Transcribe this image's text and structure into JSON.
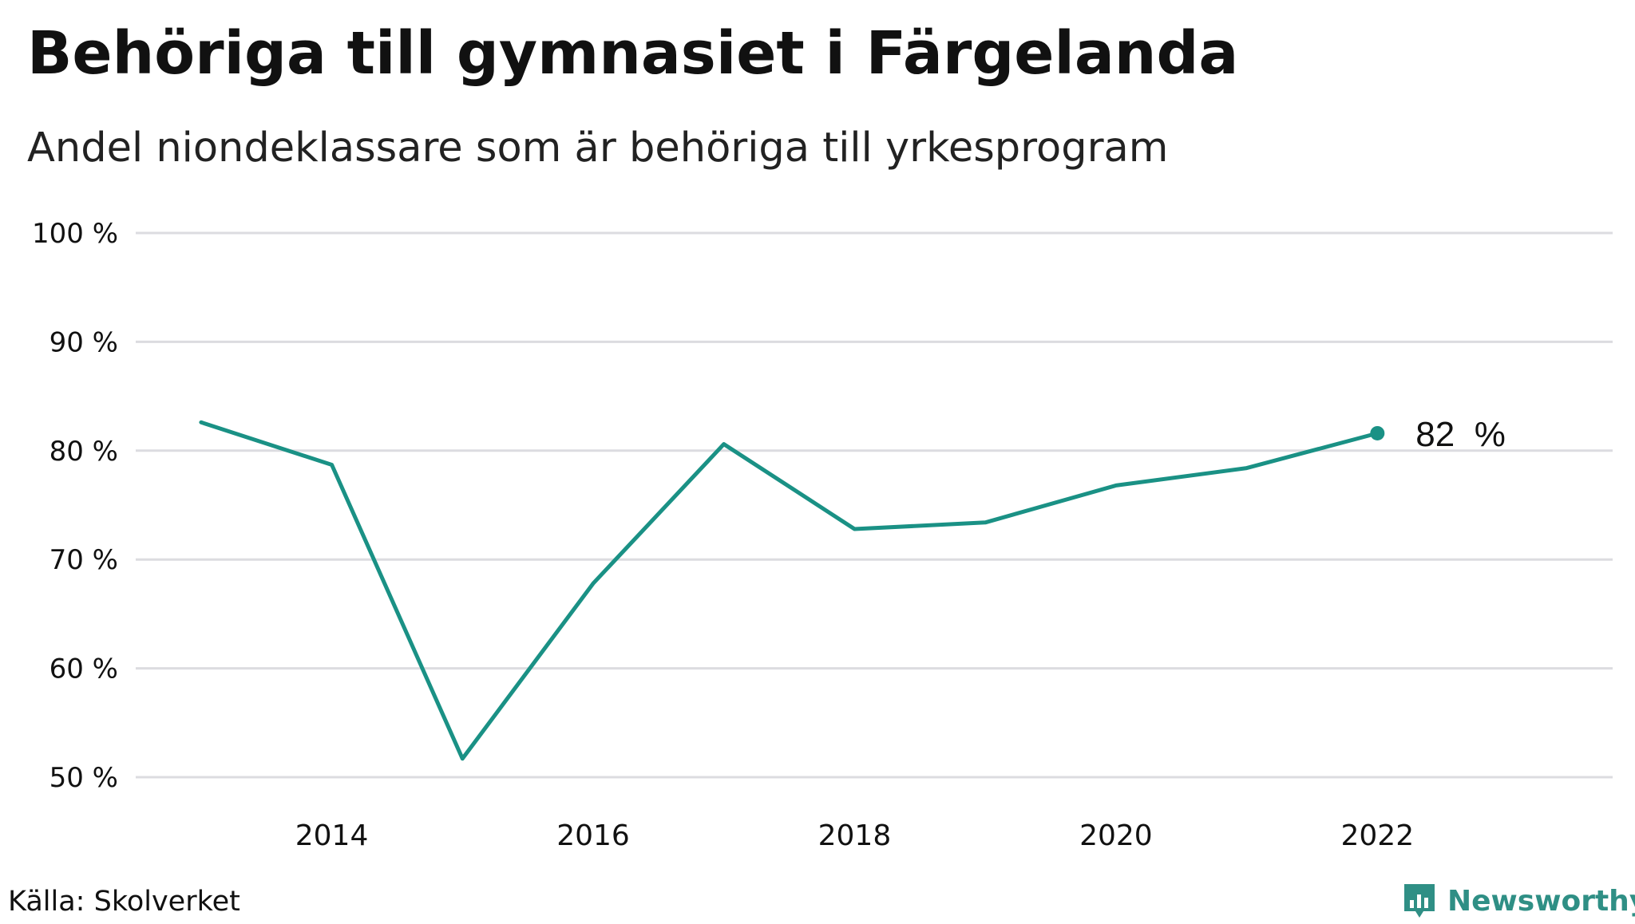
{
  "header": {
    "title": "Behöriga till gymnasiet i Färgelanda",
    "subtitle": "Andel niondeklassare som är behöriga till yrkesprogram"
  },
  "footer": {
    "source": "Källa: Skolverket",
    "brand": "Newsworthy",
    "brand_icon": "bar-chart-logo-icon"
  },
  "colors": {
    "line": "#1a9185",
    "grid": "#dcdce0",
    "text": "#111111",
    "brand": "#2f8f85"
  },
  "chart_data": {
    "type": "line",
    "title": "Behöriga till gymnasiet i Färgelanda",
    "subtitle": "Andel niondeklassare som är behöriga till yrkesprogram",
    "xlabel": "",
    "ylabel": "",
    "x": [
      2013,
      2014,
      2015,
      2016,
      2017,
      2018,
      2019,
      2020,
      2021,
      2022
    ],
    "values": [
      82.6,
      78.7,
      51.7,
      67.8,
      80.6,
      72.8,
      73.4,
      76.8,
      78.4,
      81.6
    ],
    "xlim": [
      2012.5,
      2023.8
    ],
    "ylim": [
      50,
      100
    ],
    "xticks": [
      2014,
      2016,
      2018,
      2020,
      2022
    ],
    "xtick_labels": [
      "2014",
      "2016",
      "2018",
      "2020",
      "2022"
    ],
    "yticks": [
      50,
      60,
      70,
      80,
      90,
      100
    ],
    "ytick_labels": [
      "50 %",
      "60 %",
      "70 %",
      "80 %",
      "90 %",
      "100 %"
    ],
    "grid": true,
    "end_label": "82  %"
  }
}
